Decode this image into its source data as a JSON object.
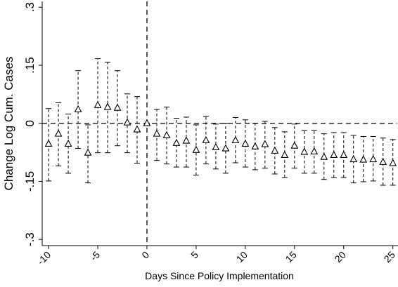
{
  "chart_data": {
    "type": "scatter",
    "x_label": "Days Since Policy Implementation",
    "y_label": "Change Log Cum. Cases",
    "x": [
      -10,
      -9,
      -8,
      -7,
      -6,
      -5,
      -4,
      -3,
      -2,
      -1,
      0,
      1,
      2,
      3,
      4,
      5,
      6,
      7,
      8,
      9,
      10,
      11,
      12,
      13,
      14,
      15,
      16,
      17,
      18,
      19,
      20,
      21,
      22,
      23,
      24,
      25
    ],
    "values": [
      -0.053,
      -0.027,
      -0.053,
      0.036,
      -0.076,
      0.047,
      0.042,
      0.04,
      0.002,
      -0.016,
      0,
      -0.027,
      -0.031,
      -0.051,
      -0.045,
      -0.069,
      -0.044,
      -0.062,
      -0.065,
      -0.044,
      -0.053,
      -0.06,
      -0.054,
      -0.071,
      -0.082,
      -0.058,
      -0.074,
      -0.073,
      -0.087,
      -0.082,
      -0.082,
      -0.093,
      -0.094,
      -0.093,
      -0.1,
      -0.103
    ],
    "ci_lower": [
      -0.149,
      -0.11,
      -0.129,
      -0.065,
      -0.154,
      -0.076,
      -0.076,
      -0.058,
      -0.076,
      -0.103,
      0,
      -0.096,
      -0.105,
      -0.113,
      -0.113,
      -0.134,
      -0.105,
      -0.118,
      -0.129,
      -0.102,
      -0.113,
      -0.12,
      -0.116,
      -0.131,
      -0.14,
      -0.116,
      -0.129,
      -0.129,
      -0.145,
      -0.14,
      -0.14,
      -0.154,
      -0.151,
      -0.149,
      -0.16,
      -0.16
    ],
    "ci_upper": [
      0.038,
      0.053,
      0.024,
      0.136,
      -0.004,
      0.167,
      0.158,
      0.136,
      0.076,
      0.069,
      0,
      0.036,
      0.042,
      0.013,
      0.016,
      -0.004,
      0.018,
      -0.002,
      0,
      0.015,
      0.009,
      0,
      0.005,
      -0.011,
      -0.022,
      -0.002,
      -0.018,
      -0.018,
      -0.027,
      -0.024,
      -0.024,
      -0.031,
      -0.034,
      -0.034,
      -0.038,
      -0.042
    ],
    "color": "#000000",
    "hline": 0,
    "vline": 0,
    "xlim": [
      -10.65,
      25.45
    ],
    "xticks": [
      -10,
      -5,
      0,
      5,
      10,
      15,
      20,
      25
    ],
    "ylim": [
      -0.316,
      0.315
    ],
    "yticks": [
      {
        "value": -0.3,
        "label": "-.3"
      },
      {
        "value": -0.15,
        "label": "-.15"
      },
      0,
      {
        "value": 0.15,
        "label": ".15"
      },
      {
        "value": 0.3,
        "label": ".3"
      }
    ]
  }
}
